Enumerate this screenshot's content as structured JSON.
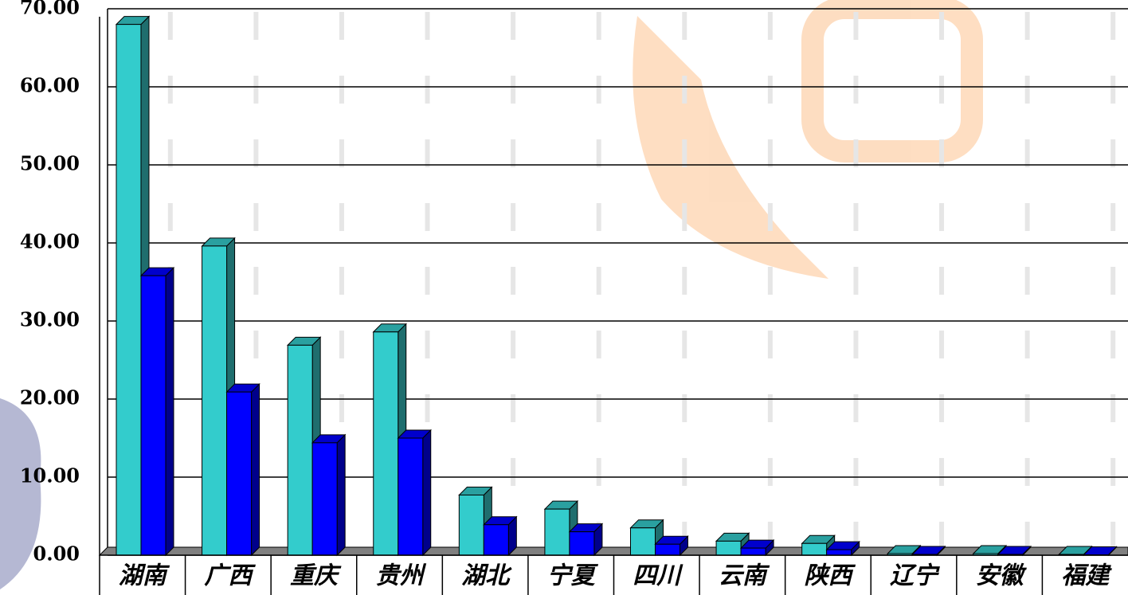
{
  "chart_data": {
    "type": "bar3d",
    "categories": [
      "湖南",
      "广西",
      "重庆",
      "贵州",
      "湖北",
      "宁夏",
      "四川",
      "云南",
      "陕西",
      "辽宁",
      "安徽",
      "福建"
    ],
    "series": [
      {
        "color": "#33cccc",
        "values": [
          68.0,
          39.6,
          26.9,
          28.6,
          7.7,
          5.9,
          3.5,
          1.8,
          1.5,
          0.2,
          0.2,
          0.1
        ]
      },
      {
        "color": "#0000ff",
        "values": [
          35.8,
          20.9,
          14.4,
          15.0,
          3.9,
          3.0,
          1.4,
          0.9,
          0.7,
          0.1,
          0.1,
          0.05
        ]
      }
    ],
    "ylim": [
      0,
      70
    ],
    "yticks": [
      {
        "value": 0,
        "label": "0.00"
      },
      {
        "value": 10,
        "label": "10.00"
      },
      {
        "value": 20,
        "label": "20.00"
      },
      {
        "value": 30,
        "label": "30.00"
      },
      {
        "value": 40,
        "label": "40.00"
      },
      {
        "value": 50,
        "label": "50.00"
      },
      {
        "value": 60,
        "label": "60.00"
      },
      {
        "value": 70,
        "label": "70.00"
      }
    ],
    "grid": true
  }
}
